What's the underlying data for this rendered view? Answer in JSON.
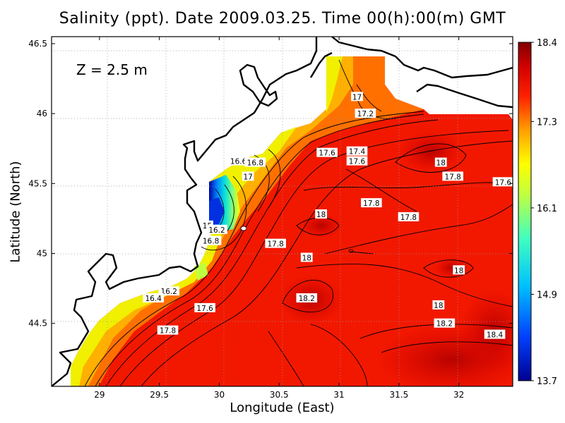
{
  "title": "Salinity (ppt). Date 2009.03.25. Time 00(h):00(m) GMT",
  "depth_label": "Z  =  2.5  m",
  "chart_data": {
    "type": "heatmap",
    "title": "Salinity (ppt). Date 2009.03.25. Time 00(h):00(m) GMT",
    "xlabel": "Longitude (East)",
    "ylabel": "Latitude (North)",
    "xlim": [
      28.6,
      32.45
    ],
    "ylim": [
      44.05,
      46.55
    ],
    "x_ticks": [
      "29",
      "29.5",
      "30",
      "30.5",
      "31",
      "31.5",
      "32"
    ],
    "y_ticks": [
      "44.5",
      "45",
      "45.5",
      "46",
      "46.5"
    ],
    "grid": true,
    "colorbar": {
      "min": 13.7,
      "max": 18.4,
      "labels": [
        "18.4",
        "17.3",
        "16.1",
        "14.9",
        "13.7"
      ],
      "colors": [
        "#00008f",
        "#0060ff",
        "#00ffff",
        "#80ff80",
        "#ffff00",
        "#ff8000",
        "#ff0000",
        "#800000"
      ]
    },
    "contour_labels": [
      {
        "text": "17",
        "lon": 31.15,
        "lat": 46.12
      },
      {
        "text": "17.2",
        "lon": 31.22,
        "lat": 46.0
      },
      {
        "text": "17.4",
        "lon": 31.15,
        "lat": 45.73
      },
      {
        "text": "17.6",
        "lon": 30.9,
        "lat": 45.72
      },
      {
        "text": "17.6",
        "lon": 31.15,
        "lat": 45.66
      },
      {
        "text": "16.6",
        "lon": 30.16,
        "lat": 45.66
      },
      {
        "text": "16.8",
        "lon": 30.3,
        "lat": 45.65
      },
      {
        "text": "17",
        "lon": 30.24,
        "lat": 45.55
      },
      {
        "text": "18",
        "lon": 31.85,
        "lat": 45.65
      },
      {
        "text": "17.8",
        "lon": 31.95,
        "lat": 45.55
      },
      {
        "text": "17.6",
        "lon": 32.37,
        "lat": 45.51
      },
      {
        "text": "17.8",
        "lon": 31.27,
        "lat": 45.36
      },
      {
        "text": "17.8",
        "lon": 31.58,
        "lat": 45.26
      },
      {
        "text": "18",
        "lon": 30.85,
        "lat": 45.28
      },
      {
        "text": "15",
        "lon": 29.9,
        "lat": 45.2
      },
      {
        "text": "16.2",
        "lon": 29.98,
        "lat": 45.17
      },
      {
        "text": "16.8",
        "lon": 29.93,
        "lat": 45.09
      },
      {
        "text": "17.8",
        "lon": 30.47,
        "lat": 45.07
      },
      {
        "text": "18",
        "lon": 30.73,
        "lat": 44.97
      },
      {
        "text": "18",
        "lon": 32.0,
        "lat": 44.88
      },
      {
        "text": "16.2",
        "lon": 29.58,
        "lat": 44.73
      },
      {
        "text": "16.4",
        "lon": 29.45,
        "lat": 44.68
      },
      {
        "text": "17.6",
        "lon": 29.88,
        "lat": 44.61
      },
      {
        "text": "18.2",
        "lon": 30.73,
        "lat": 44.68
      },
      {
        "text": "18",
        "lon": 31.83,
        "lat": 44.63
      },
      {
        "text": "18.2",
        "lon": 31.88,
        "lat": 44.5
      },
      {
        "text": "18.4",
        "lon": 32.3,
        "lat": 44.42
      },
      {
        "text": "17.8",
        "lon": 29.57,
        "lat": 44.45
      }
    ]
  }
}
